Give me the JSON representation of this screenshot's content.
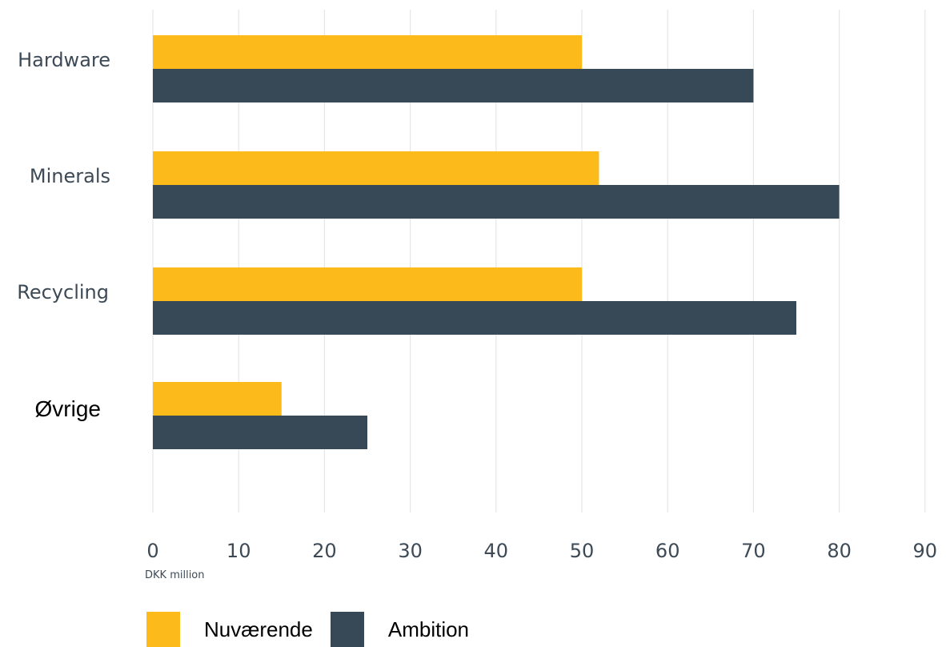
{
  "chart_data": {
    "type": "bar",
    "orientation": "horizontal",
    "categories": [
      "Hardware",
      "Minerals",
      "Recycling",
      "Øvrige"
    ],
    "series": [
      {
        "name": "Nuværende",
        "color": "#fdbb1b",
        "values": [
          50,
          52,
          50,
          15
        ]
      },
      {
        "name": "Ambition",
        "color": "#374956",
        "values": [
          70,
          80,
          75,
          25
        ]
      }
    ],
    "xlim": [
      0,
      90
    ],
    "xticks": [
      0,
      10,
      20,
      30,
      40,
      50,
      60,
      70,
      80,
      90
    ],
    "xlabel": "DKK million",
    "ylabel": "",
    "title": "",
    "grid": "vertical",
    "legend_position": "bottom-left"
  }
}
